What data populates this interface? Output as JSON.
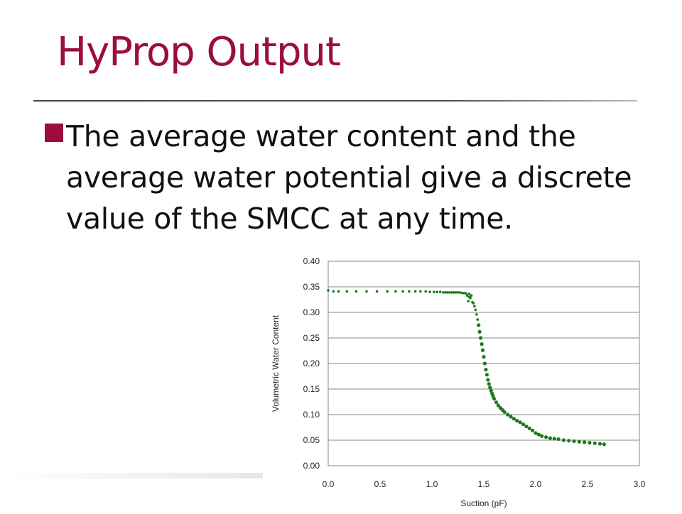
{
  "slide": {
    "title": "HyProp Output",
    "bullet_text": "The average water content and the average water potential give a discrete value of the SMCC at any time."
  },
  "colors": {
    "title": "#9b0d3d",
    "bullet": "#9b0d3d",
    "series": "#1a7a1a"
  },
  "chart_data": {
    "type": "scatter",
    "xlabel": "Suction (pF)",
    "ylabel": "Volumetric Water Content",
    "xlim": [
      0,
      3.0
    ],
    "ylim": [
      0,
      0.4
    ],
    "xticks": [
      "0.0",
      "0.5",
      "1.0",
      "1.5",
      "2.0",
      "2.5",
      "3.0"
    ],
    "yticks": [
      "0.00",
      "0.05",
      "0.10",
      "0.15",
      "0.20",
      "0.25",
      "0.30",
      "0.35",
      "0.40"
    ],
    "grid": "horizontal",
    "legend": "none",
    "series": [
      {
        "marker": "dot",
        "x": [
          0.0,
          0.05,
          0.1,
          0.18,
          0.27,
          0.37,
          0.47,
          0.57,
          0.65,
          0.72,
          0.78,
          0.84,
          0.89,
          0.94,
          0.98,
          1.02,
          1.05,
          1.08,
          1.11,
          1.13,
          1.15,
          1.17,
          1.19,
          1.21,
          1.23,
          1.25,
          1.27,
          1.29,
          1.31,
          1.33,
          1.34,
          1.35,
          1.36,
          1.37,
          1.38,
          1.36,
          1.39,
          1.4,
          1.41,
          1.42,
          1.43,
          1.44,
          1.45,
          1.46,
          1.47,
          1.48,
          1.49,
          1.5,
          1.51,
          1.52,
          1.53,
          1.54,
          1.55,
          1.56,
          1.57,
          1.58,
          1.59,
          1.6,
          1.62,
          1.64,
          1.66,
          1.68,
          1.7,
          1.73,
          1.76,
          1.79,
          1.82,
          1.85,
          1.88,
          1.91,
          1.94,
          1.97,
          2.0,
          2.03,
          2.06,
          2.1,
          2.14,
          2.18,
          2.22,
          2.27,
          2.32,
          2.37,
          2.42,
          2.47,
          2.52,
          2.57,
          2.62,
          2.66
        ],
        "y": [
          0.343,
          0.341,
          0.341,
          0.341,
          0.341,
          0.341,
          0.341,
          0.341,
          0.341,
          0.341,
          0.341,
          0.341,
          0.341,
          0.341,
          0.34,
          0.34,
          0.34,
          0.34,
          0.339,
          0.339,
          0.339,
          0.339,
          0.339,
          0.339,
          0.339,
          0.339,
          0.339,
          0.338,
          0.338,
          0.337,
          0.333,
          0.322,
          0.336,
          0.328,
          0.333,
          0.33,
          0.32,
          0.318,
          0.312,
          0.305,
          0.296,
          0.286,
          0.275,
          0.262,
          0.25,
          0.238,
          0.226,
          0.213,
          0.2,
          0.188,
          0.178,
          0.168,
          0.16,
          0.153,
          0.147,
          0.141,
          0.136,
          0.131,
          0.124,
          0.118,
          0.113,
          0.109,
          0.105,
          0.1,
          0.096,
          0.092,
          0.088,
          0.085,
          0.081,
          0.077,
          0.073,
          0.069,
          0.064,
          0.061,
          0.058,
          0.056,
          0.054,
          0.053,
          0.052,
          0.05,
          0.049,
          0.048,
          0.047,
          0.046,
          0.045,
          0.044,
          0.043,
          0.042
        ]
      }
    ]
  }
}
